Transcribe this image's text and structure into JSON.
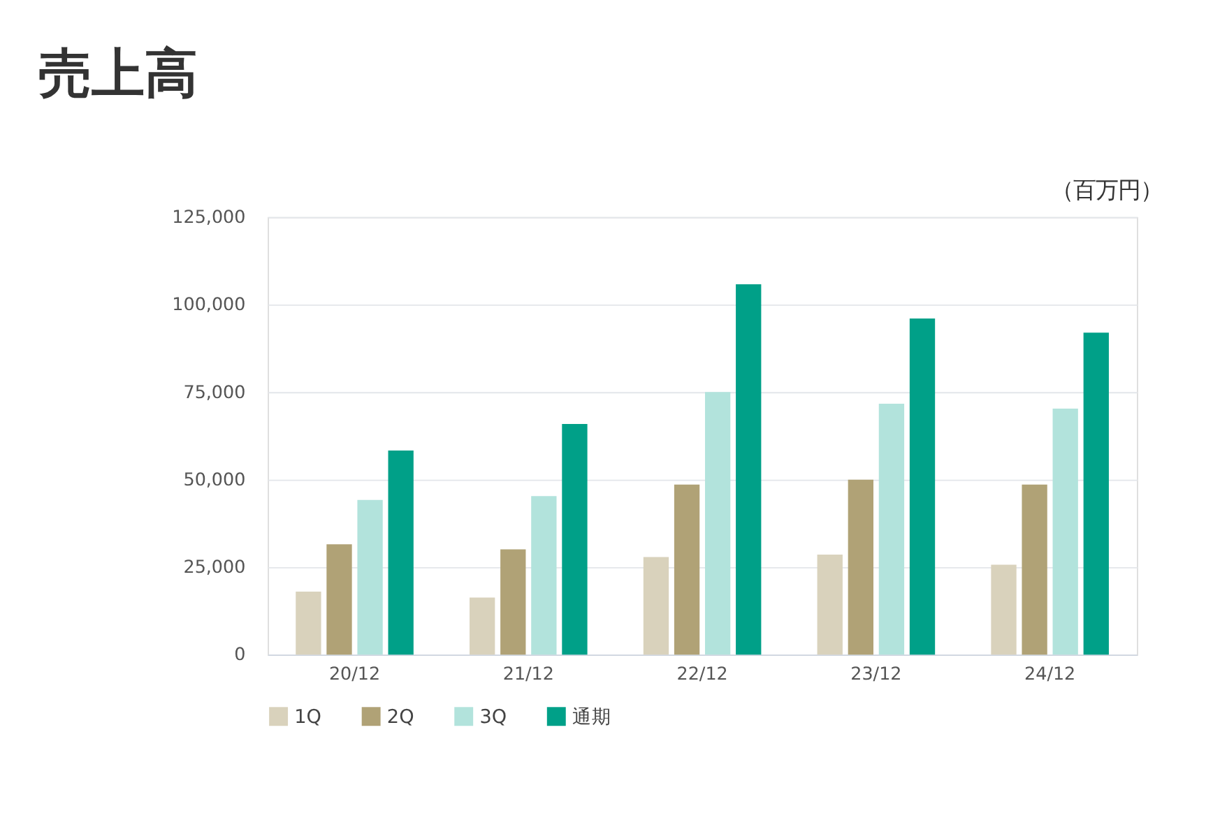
{
  "chart_data": {
    "type": "bar",
    "title": "売上高",
    "ylabel": "（百万円）",
    "categories": [
      "20/12",
      "21/12",
      "22/12",
      "23/12",
      "24/12"
    ],
    "series": [
      {
        "name": "1Q",
        "color": "#d9d2bc",
        "values": [
          18000,
          16300,
          27900,
          28600,
          25700
        ]
      },
      {
        "name": "2Q",
        "color": "#b0a276",
        "values": [
          31500,
          30100,
          48600,
          50000,
          48600
        ]
      },
      {
        "name": "3Q",
        "color": "#b2e3dc",
        "values": [
          44200,
          45300,
          75000,
          71700,
          70300
        ]
      },
      {
        "name": "通期",
        "color": "#00a088",
        "values": [
          58300,
          65900,
          105800,
          96000,
          92000
        ]
      }
    ],
    "ylim": [
      0,
      125000
    ],
    "yticks": [
      0,
      {
        "value": 25000,
        "label": "25,000"
      },
      {
        "value": 50000,
        "label": "50,000"
      },
      {
        "value": 75000,
        "label": "75,000"
      },
      {
        "value": 100000,
        "label": "100,000"
      },
      {
        "value": 125000,
        "label": "125,000"
      }
    ],
    "grid": "y",
    "legend": "bottom"
  }
}
